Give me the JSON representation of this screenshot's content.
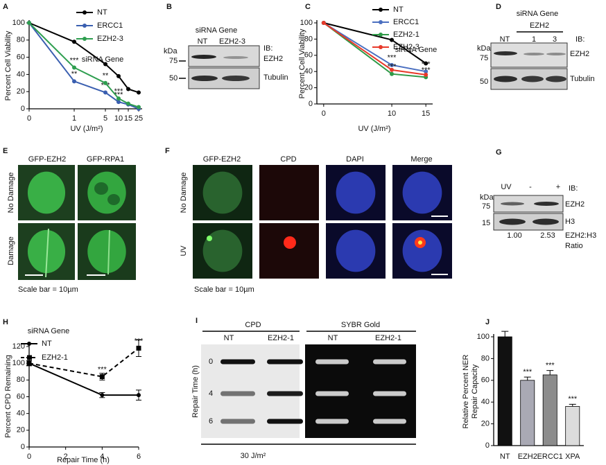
{
  "chart_data": [
    {
      "type": "line",
      "label": "A",
      "y_label": "Percent Cell Viability",
      "x_label": "UV (J/m²)",
      "legend_title": "siRNA Gene",
      "categories": [
        "0",
        "1",
        "5",
        "10",
        "15",
        "25"
      ],
      "ylim": [
        0,
        100
      ],
      "yticks": [
        0,
        20,
        40,
        60,
        80,
        100
      ],
      "series": [
        {
          "name": "NT",
          "color": "#000000",
          "values": [
            100,
            78,
            52,
            38,
            23,
            19
          ],
          "significance": [
            null,
            null,
            null,
            null,
            null,
            null
          ]
        },
        {
          "name": "ERCC1",
          "color": "#3a5fb0",
          "values": [
            100,
            32,
            19,
            8,
            5,
            0
          ],
          "significance": [
            null,
            "**",
            "***",
            "***",
            null,
            null
          ]
        },
        {
          "name": "EZH2-3",
          "color": "#2e9e4f",
          "values": [
            100,
            48,
            30,
            12,
            6,
            2
          ],
          "significance": [
            null,
            "***",
            "**",
            "***",
            null,
            null
          ]
        }
      ]
    },
    {
      "type": "line",
      "label": "C",
      "y_label": "Percent Cell Viability",
      "x_label": "UV (J/m²)",
      "legend_title": "siRNA Gene",
      "x": [
        0,
        10,
        15
      ],
      "xlim": [
        -1,
        16
      ],
      "xticks": [
        0,
        10,
        15
      ],
      "ylim": [
        0,
        100
      ],
      "yticks": [
        0,
        20,
        40,
        60,
        80,
        100
      ],
      "series": [
        {
          "name": "NT",
          "color": "#000000",
          "values": [
            100,
            79,
            50
          ],
          "significance": [
            null,
            null,
            null
          ]
        },
        {
          "name": "ERCC1",
          "color": "#4a6fc0",
          "values": [
            100,
            48,
            40
          ],
          "significance": [
            null,
            "***",
            "***"
          ]
        },
        {
          "name": "EZH2-1",
          "color": "#2f9a48",
          "values": [
            100,
            37,
            33
          ],
          "significance": [
            null,
            "***",
            "***"
          ]
        },
        {
          "name": "EZH2-3",
          "color": "#e8392a",
          "values": [
            100,
            42,
            36
          ],
          "significance": [
            null,
            null,
            null
          ]
        }
      ]
    },
    {
      "type": "line",
      "label": "H",
      "y_label": "Percent CPD Remaining",
      "x_label": "Repair Time (h)",
      "legend_title": "siRNA Gene",
      "x": [
        0,
        4,
        6
      ],
      "xlim": [
        0,
        6
      ],
      "xticks": [
        0,
        2,
        4,
        6
      ],
      "ylim": [
        0,
        120
      ],
      "yticks": [
        0,
        20,
        40,
        60,
        80,
        100,
        120
      ],
      "series": [
        {
          "name": "NT",
          "color": "#000000",
          "marker": "circle",
          "dashed": false,
          "values": [
            100,
            62,
            62
          ],
          "errors": [
            3,
            3,
            6
          ],
          "significance": [
            null,
            null,
            null
          ]
        },
        {
          "name": "EZH2-1",
          "color": "#000000",
          "marker": "square",
          "dashed": true,
          "values": [
            100,
            84,
            118
          ],
          "errors": [
            3,
            4,
            10
          ],
          "significance": [
            null,
            "***",
            "***"
          ]
        }
      ]
    },
    {
      "type": "bar",
      "label": "J",
      "y_label": [
        "Relative Percent NER",
        "Repair Capacity"
      ],
      "categories": [
        "NT",
        "EZH2",
        "ERCC1",
        "XPA"
      ],
      "values": [
        100,
        60,
        65,
        36
      ],
      "errors": [
        5,
        3,
        4,
        2
      ],
      "colors": [
        "#111111",
        "#a9a9b4",
        "#8c8c8c",
        "#dcdcdc"
      ],
      "significance": [
        null,
        "***",
        "***",
        "***"
      ],
      "ylim": [
        0,
        100
      ],
      "yticks": [
        0,
        20,
        40,
        60,
        80,
        100
      ]
    }
  ],
  "blot_B": {
    "label": "B",
    "header": "siRNA Gene",
    "lanes": [
      "NT",
      "EZH2-3"
    ],
    "kda": "kDa",
    "markers": [
      "75",
      "50"
    ],
    "ib": "IB:",
    "proteins": [
      "EZH2",
      "Tubulin"
    ]
  },
  "blot_D": {
    "label": "D",
    "header": "siRNA Gene",
    "group": "EZH2",
    "lanes": [
      "NT",
      "1",
      "3"
    ],
    "ib": "IB:",
    "kda": "kDa",
    "markers": [
      "75",
      "50"
    ],
    "proteins": [
      "EZH2",
      "Tubulin"
    ]
  },
  "images_E": {
    "label": "E",
    "columns": [
      "GFP-EZH2",
      "GFP-RPA1"
    ],
    "rows": [
      "No Damage",
      "Damage"
    ],
    "scale": "Scale bar = 10µm"
  },
  "images_F": {
    "label": "F",
    "columns": [
      "GFP-EZH2",
      "CPD",
      "DAPI",
      "Merge"
    ],
    "rows": [
      "No Damage",
      "UV"
    ],
    "scale": "Scale bar = 10µm"
  },
  "blot_G": {
    "label": "G",
    "treatment": "UV",
    "lanes": [
      "-",
      "+"
    ],
    "ib": "IB:",
    "kda": "kDa",
    "markers": [
      "75",
      "15"
    ],
    "proteins": [
      "EZH2",
      "H3"
    ],
    "ratios": [
      "1.00",
      "2.53"
    ],
    "ratio_label": [
      "EZH2:H3",
      "Ratio"
    ]
  },
  "slot_blot_I": {
    "label": "I",
    "panels": [
      "CPD",
      "SYBR Gold"
    ],
    "lanes": [
      "NT",
      "EZH2-1",
      "NT",
      "EZH2-1"
    ],
    "y_label": "Repair Time (h)",
    "rows": [
      "0",
      "4",
      "6"
    ],
    "dose": "30 J/m²"
  }
}
